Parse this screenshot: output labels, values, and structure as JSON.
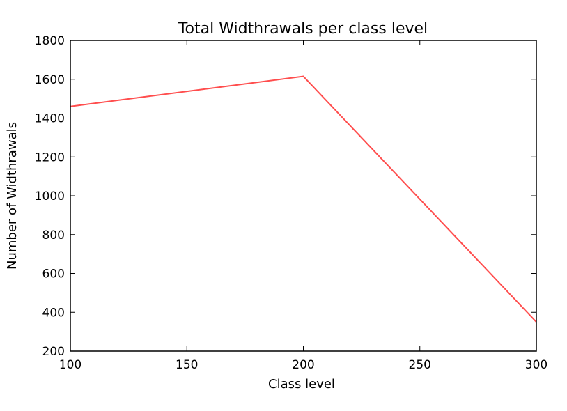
{
  "chart_data": {
    "type": "line",
    "title": "Total Widthrawals per class level",
    "xlabel": "Class level",
    "ylabel": "Number of Widthrawals",
    "xlim": [
      100,
      300
    ],
    "ylim": [
      200,
      1800
    ],
    "xticks": [
      100,
      150,
      200,
      250,
      300
    ],
    "yticks": [
      200,
      400,
      600,
      800,
      1000,
      1200,
      1400,
      1600,
      1800
    ],
    "grid": false,
    "series": [
      {
        "x": [
          100,
          200,
          300
        ],
        "y": [
          1460,
          1615,
          350
        ],
        "color": "#ff4d4d"
      }
    ]
  }
}
